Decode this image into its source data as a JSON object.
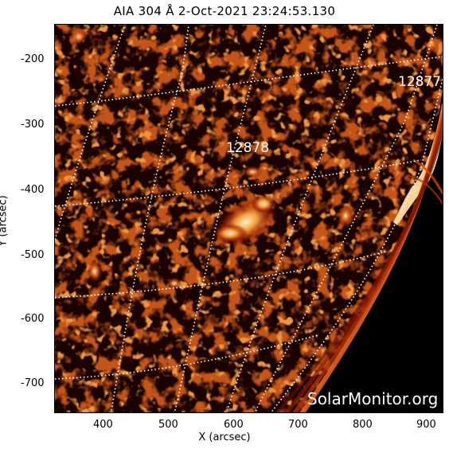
{
  "title": "AIA 304 Å   2-Oct-2021  23:24:53.130",
  "x_axis": {
    "label": "X (arcsec)",
    "ticks": [
      "400",
      "500",
      "600",
      "700",
      "800",
      "900"
    ]
  },
  "y_axis": {
    "label": "Y (arcsec)",
    "ticks": [
      "-200",
      "-300",
      "-400",
      "-500",
      "-600",
      "-700"
    ]
  },
  "regions": [
    "12877",
    "12878"
  ],
  "watermark": "SolarMonitor.org",
  "colors": {
    "background": "#000000",
    "emission_dim": "#6a0f00",
    "emission_mid": "#c8400a",
    "emission_bright": "#ffd27a",
    "grid": "#ffffff"
  }
}
